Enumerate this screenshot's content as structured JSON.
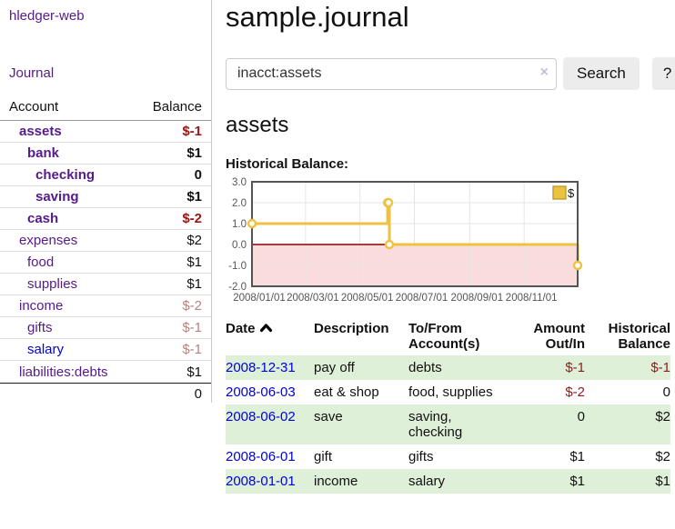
{
  "app": {
    "brand": "hledger-web",
    "nav": {
      "journal": "Journal"
    }
  },
  "sidebar": {
    "headers": {
      "account": "Account",
      "balance": "Balance"
    },
    "accounts": [
      {
        "name": "assets",
        "indent": 1,
        "bold": true,
        "balance": "$-1",
        "balance_style": "neg-strong"
      },
      {
        "name": "bank",
        "indent": 2,
        "bold": true,
        "balance": "$1",
        "balance_style": "pos"
      },
      {
        "name": "checking",
        "indent": 3,
        "bold": true,
        "balance": "0",
        "balance_style": "pos"
      },
      {
        "name": "saving",
        "indent": 3,
        "bold": true,
        "balance": "$1",
        "balance_style": "pos"
      },
      {
        "name": "cash",
        "indent": 2,
        "bold": true,
        "balance": "$-2",
        "balance_style": "neg-strong"
      },
      {
        "name": "expenses",
        "indent": 1,
        "bold": false,
        "balance": "$2",
        "balance_style": "pos"
      },
      {
        "name": "food",
        "indent": 2,
        "bold": false,
        "balance": "$1",
        "balance_style": "pos"
      },
      {
        "name": "supplies",
        "indent": 2,
        "bold": false,
        "balance": "$1",
        "balance_style": "pos"
      },
      {
        "name": "income",
        "indent": 1,
        "bold": false,
        "balance": "$-2",
        "balance_style": "neg-soft"
      },
      {
        "name": "gifts",
        "indent": 2,
        "bold": false,
        "balance": "$-1",
        "balance_style": "neg-soft"
      },
      {
        "name": "salary",
        "indent": 2,
        "bold": false,
        "blue": true,
        "balance": "$-1",
        "balance_style": "neg-soft"
      },
      {
        "name": "liabilities:debts",
        "indent": 1,
        "bold": false,
        "balance": "$1",
        "balance_style": "pos"
      }
    ],
    "total": "0"
  },
  "header": {
    "title": "sample.journal"
  },
  "search": {
    "value": "inacct:assets",
    "clear_icon": "×",
    "button": "Search",
    "help_button": "?"
  },
  "account_page": {
    "title": "assets",
    "chart_label": "Historical Balance:"
  },
  "chart_data": {
    "type": "line",
    "step": true,
    "title": "Historical Balance:",
    "series": [
      {
        "name": "$",
        "x": [
          "2008-01-01",
          "2008-06-01",
          "2008-06-02",
          "2008-06-03",
          "2008-12-31"
        ],
        "values": [
          1,
          2,
          2,
          0,
          -1
        ]
      }
    ],
    "x_range": [
      "2008-01-01",
      "2008-12-31"
    ],
    "x_tick_labels": [
      "2008/01/01",
      "2008/03/01",
      "2008/05/01",
      "2008/07/01",
      "2008/09/01",
      "2008/11/01"
    ],
    "y_ticks": [
      3.0,
      2.0,
      1.0,
      0.0,
      -1.0,
      -2.0
    ],
    "ylim": [
      -2.0,
      3.0
    ],
    "grid": true,
    "legend": {
      "label": "$",
      "position": "top-right"
    },
    "colors": {
      "series": "#edc240",
      "marker_fill": "#ffffff",
      "negative_zone_fill": "#fbdcdc",
      "zero_line": "#8b0000",
      "plot_border": "#545454",
      "gridline": "#e4e4e4",
      "tick_text": "#545454"
    }
  },
  "register": {
    "headers": {
      "date": "Date",
      "description": "Description",
      "accounts": "To/From\nAccount(s)",
      "amount": "Amount\nOut/In",
      "balance": "Historical\nBalance"
    },
    "rows": [
      {
        "date": "2008-12-31",
        "description": "pay off",
        "accounts": "debts",
        "amount": "$-1",
        "amount_neg": true,
        "balance": "$-1",
        "balance_neg": true,
        "shaded": true
      },
      {
        "date": "2008-06-03",
        "description": "eat & shop",
        "accounts": "food, supplies",
        "amount": "$-2",
        "amount_neg": true,
        "balance": "0",
        "balance_neg": false,
        "shaded": false
      },
      {
        "date": "2008-06-02",
        "description": "save",
        "accounts": "saving, checking",
        "amount": "0",
        "amount_neg": false,
        "balance": "$2",
        "balance_neg": false,
        "shaded": true
      },
      {
        "date": "2008-06-01",
        "description": "gift",
        "accounts": "gifts",
        "amount": "$1",
        "amount_neg": false,
        "balance": "$2",
        "balance_neg": false,
        "shaded": false
      },
      {
        "date": "2008-01-01",
        "description": "income",
        "accounts": "salary",
        "amount": "$1",
        "amount_neg": false,
        "balance": "$1",
        "balance_neg": false,
        "shaded": true
      }
    ]
  }
}
